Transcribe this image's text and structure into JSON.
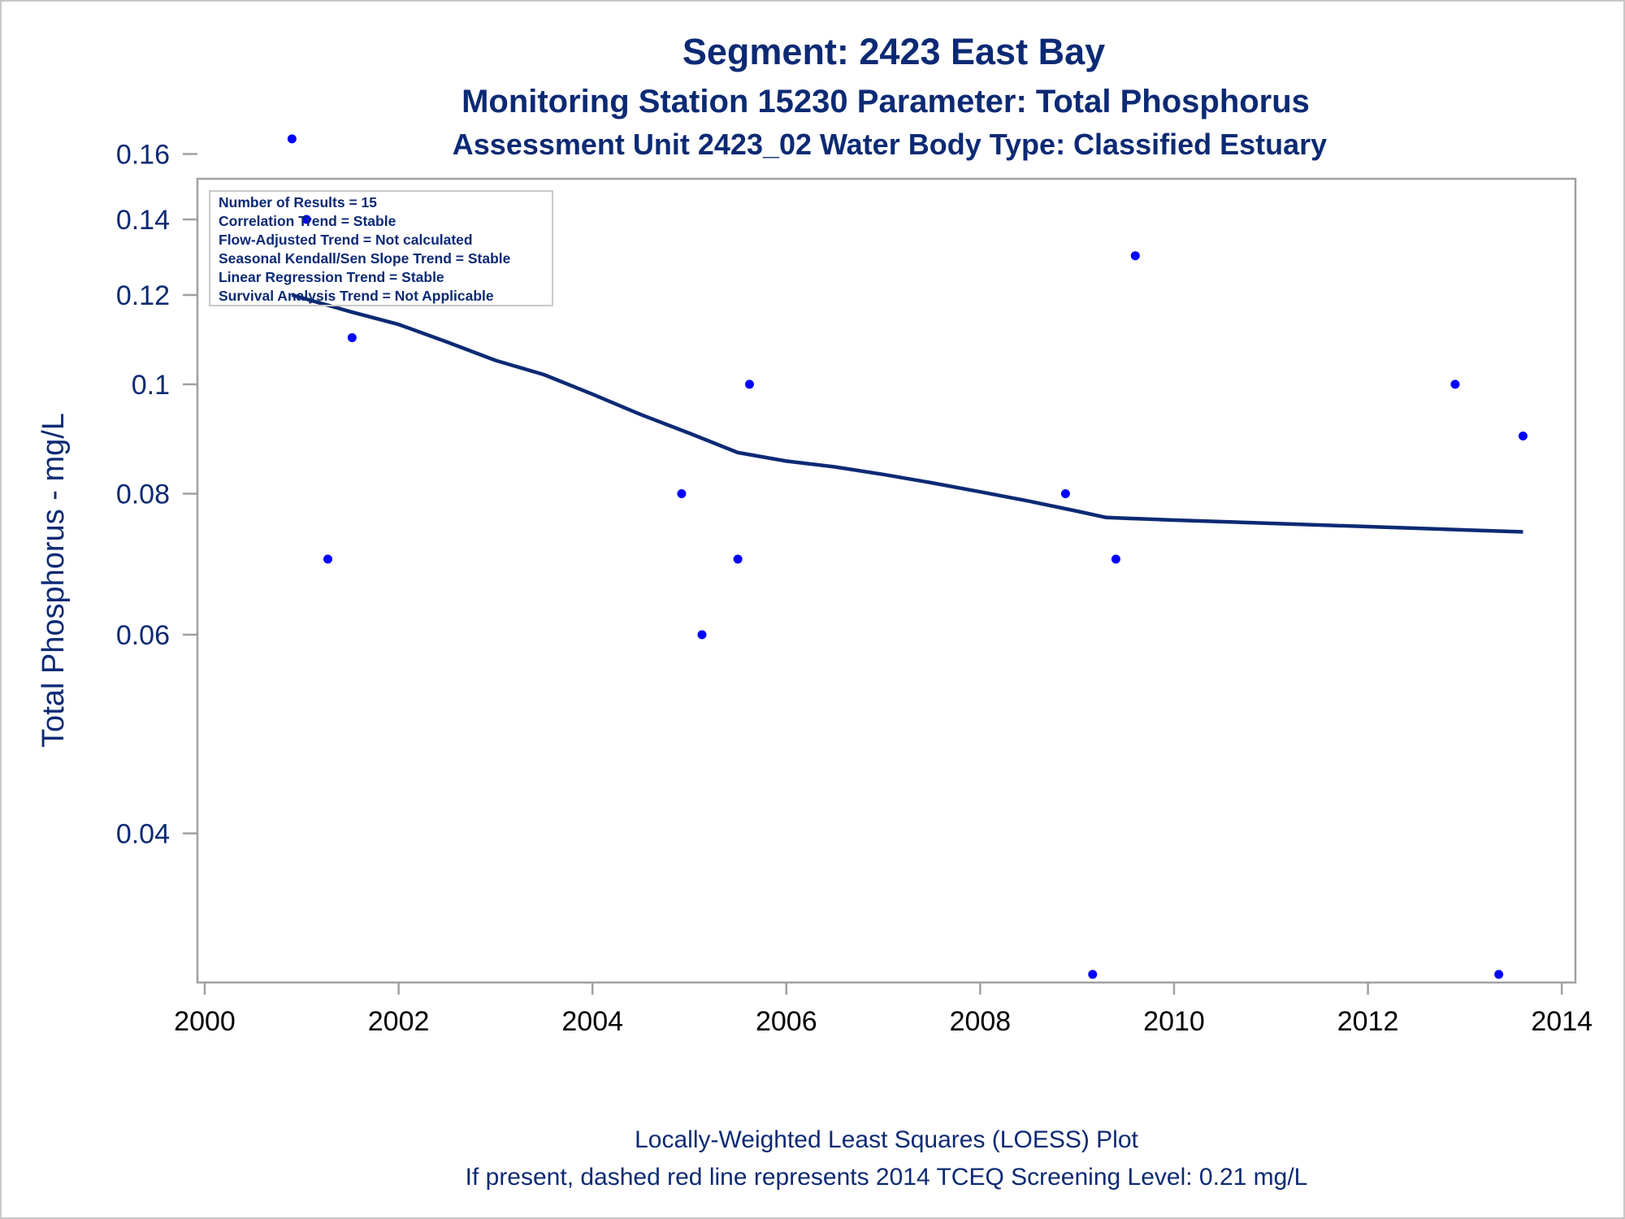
{
  "titles": [
    "Segment: 2423  East Bay",
    "Monitoring Station 15230 Parameter: Total Phosphorus",
    "Assessment Unit 2423_02   Water Body Type: Classified Estuary"
  ],
  "stats_box": [
    "Number of Results = 15",
    "Correlation Trend = Stable",
    "Flow-Adjusted Trend = Not calculated",
    "Seasonal Kendall/Sen Slope Trend = Stable",
    "Linear Regression Trend = Stable",
    "Survival Analysis Trend = Not Applicable"
  ],
  "footnotes": [
    "Locally-Weighted Least Squares (LOESS) Plot",
    "If present, dashed red line represents 2014 TCEQ Screening Level: 0.21 mg/L"
  ],
  "colors": {
    "title": "#0c2a74",
    "points": "#0000ff",
    "loess_line": "#0c2a74",
    "frame": "#a0a0a0"
  },
  "chart_data": {
    "type": "scatter",
    "title": "Segment: 2423  East Bay",
    "xlabel": "",
    "ylabel": "Total Phosphorus - mg/L",
    "y_scale": "log",
    "xlim": [
      2000,
      2014.1
    ],
    "ylim": [
      0.029,
      0.17
    ],
    "x_ticks": [
      2000,
      2002,
      2004,
      2006,
      2008,
      2010,
      2012,
      2014
    ],
    "y_ticks": [
      0.04,
      0.06,
      0.08,
      0.1,
      0.12,
      0.14,
      0.16
    ],
    "y_tick_labels": [
      "0.04",
      "0.06",
      "0.08",
      "0.1",
      "0.12",
      "0.14",
      "0.16"
    ],
    "grid": false,
    "series": [
      {
        "kind": "points",
        "marker": "dot",
        "points": [
          {
            "x": 2000.9,
            "y": 0.165
          },
          {
            "x": 2001.05,
            "y": 0.14
          },
          {
            "x": 2001.27,
            "y": 0.07
          },
          {
            "x": 2001.52,
            "y": 0.11
          },
          {
            "x": 2004.92,
            "y": 0.08
          },
          {
            "x": 2005.13,
            "y": 0.06
          },
          {
            "x": 2005.5,
            "y": 0.07
          },
          {
            "x": 2005.62,
            "y": 0.1
          },
          {
            "x": 2008.88,
            "y": 0.08
          },
          {
            "x": 2009.16,
            "y": 0.03
          },
          {
            "x": 2009.4,
            "y": 0.07
          },
          {
            "x": 2009.6,
            "y": 0.13
          },
          {
            "x": 2012.9,
            "y": 0.1
          },
          {
            "x": 2013.35,
            "y": 0.03
          },
          {
            "x": 2013.6,
            "y": 0.09
          }
        ]
      },
      {
        "kind": "line",
        "points": [
          {
            "x": 2000.9,
            "y": 0.12
          },
          {
            "x": 2001.5,
            "y": 0.116
          },
          {
            "x": 2002.0,
            "y": 0.113
          },
          {
            "x": 2002.5,
            "y": 0.109
          },
          {
            "x": 2003.0,
            "y": 0.105
          },
          {
            "x": 2003.5,
            "y": 0.102
          },
          {
            "x": 2004.0,
            "y": 0.098
          },
          {
            "x": 2004.5,
            "y": 0.094
          },
          {
            "x": 2005.0,
            "y": 0.0905
          },
          {
            "x": 2005.5,
            "y": 0.087
          },
          {
            "x": 2006.0,
            "y": 0.0855
          },
          {
            "x": 2006.5,
            "y": 0.0845
          },
          {
            "x": 2007.0,
            "y": 0.0832
          },
          {
            "x": 2007.5,
            "y": 0.0818
          },
          {
            "x": 2008.0,
            "y": 0.0803
          },
          {
            "x": 2008.5,
            "y": 0.0788
          },
          {
            "x": 2009.0,
            "y": 0.0772
          },
          {
            "x": 2009.3,
            "y": 0.0762
          },
          {
            "x": 2010.0,
            "y": 0.0758
          },
          {
            "x": 2011.0,
            "y": 0.0753
          },
          {
            "x": 2012.0,
            "y": 0.0748
          },
          {
            "x": 2013.0,
            "y": 0.0743
          },
          {
            "x": 2013.6,
            "y": 0.074
          }
        ]
      }
    ]
  }
}
